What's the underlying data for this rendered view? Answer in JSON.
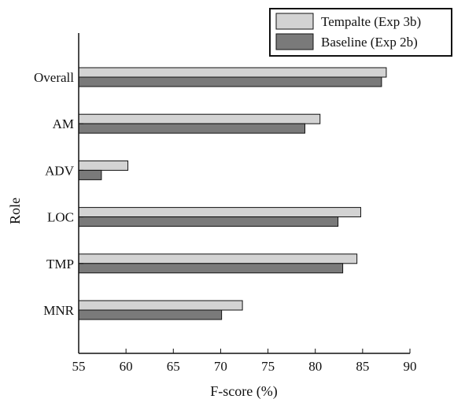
{
  "chart_data": {
    "type": "bar",
    "orientation": "horizontal",
    "categories": [
      "Overall",
      "AM",
      "ADV",
      "LOC",
      "TMP",
      "MNR"
    ],
    "series": [
      {
        "name": "Tempalte (Exp 3b)",
        "color": "#d3d3d3",
        "values": [
          87.5,
          80.5,
          60.2,
          84.8,
          84.4,
          72.3
        ]
      },
      {
        "name": "Baseline  (Exp 2b)",
        "color": "#7a7a7a",
        "values": [
          87.0,
          78.9,
          57.4,
          82.4,
          82.9,
          70.1
        ]
      }
    ],
    "xlabel": "F-score (%)",
    "ylabel": "Role",
    "xlim": [
      55,
      90
    ],
    "xticks": [
      "55",
      "60",
      "65",
      "70",
      "75",
      "80",
      "85",
      "90"
    ],
    "grid": false,
    "legend_position": "top-right"
  }
}
